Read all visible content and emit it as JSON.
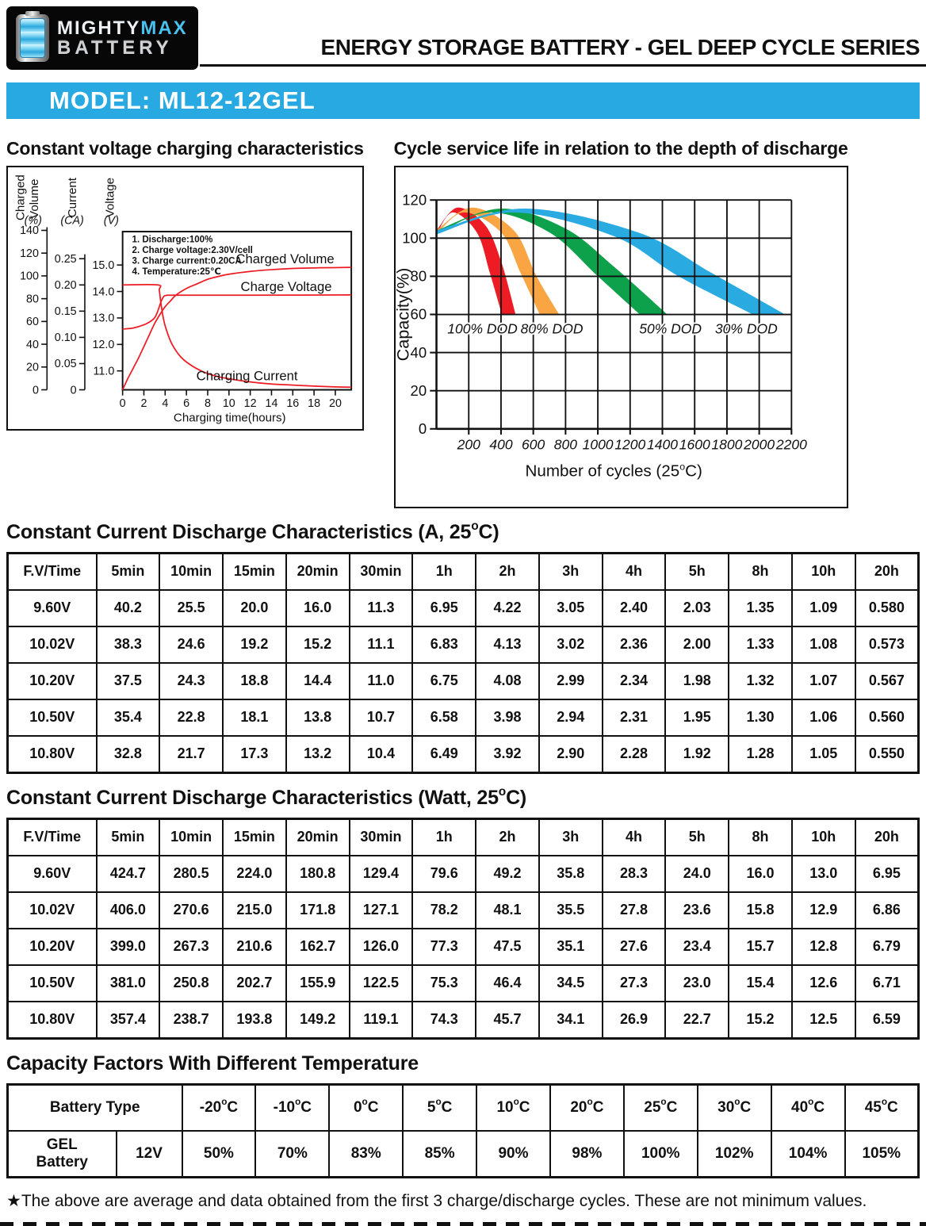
{
  "header": {
    "logo": {
      "brand_part1": "MIGHTY",
      "brand_part2": "MAX",
      "brand_part3": "BATTERY"
    },
    "series_title": "ENERGY STORAGE BATTERY - GEL DEEP CYCLE SERIES",
    "model_label": "MODEL: ML12-12GEL"
  },
  "chart_data": [
    {
      "id": "charging",
      "type": "line",
      "title": "Constant voltage charging characteristics",
      "xlabel": "Charging time(hours)",
      "x_ticks": [
        0,
        2,
        4,
        6,
        8,
        10,
        12,
        14,
        16,
        18,
        20
      ],
      "x_range": [
        0,
        21.5
      ],
      "grid": false,
      "axes": [
        {
          "name": "charged-volume",
          "label_lines": [
            "Charged",
            "Volume"
          ],
          "unit": "(%)",
          "ticks": [
            "0",
            "20",
            "40",
            "60",
            "80",
            "100",
            "120",
            "140"
          ],
          "range": [
            0,
            140
          ]
        },
        {
          "name": "current",
          "label_lines": [
            "Current"
          ],
          "unit": "(CA)",
          "ticks": [
            "0",
            "0.05",
            "0.10",
            "0.15",
            "0.20",
            "0.25"
          ],
          "range": [
            0,
            0.25
          ]
        },
        {
          "name": "voltage",
          "label_lines": [
            "Voltage"
          ],
          "unit": "(V)",
          "ticks": [
            "11.0",
            "12.0",
            "13.0",
            "14.0",
            "15.0"
          ],
          "range": [
            11,
            15
          ]
        }
      ],
      "notes": [
        "1. Discharge:100%",
        "2. Charge voltage:2.30V/cell",
        "3. Charge current:0.20CA",
        "4. Temperature:25℃"
      ],
      "line_color": "#ed1c24",
      "series": [
        {
          "name": "Charged Volume",
          "axis": "charged-volume",
          "color": "#ed1c24",
          "points": [
            [
              0,
              0
            ],
            [
              0.5,
              10
            ],
            [
              1,
              19
            ],
            [
              1.5,
              28
            ],
            [
              2,
              38
            ],
            [
              2.5,
              48
            ],
            [
              3,
              58
            ],
            [
              3.5,
              66
            ],
            [
              4,
              73
            ],
            [
              4.5,
              78
            ],
            [
              5,
              83
            ],
            [
              6,
              89
            ],
            [
              7,
              93
            ],
            [
              8,
              97
            ],
            [
              9,
              99.5
            ],
            [
              10,
              101.5
            ],
            [
              12,
              104
            ],
            [
              14,
              105.5
            ],
            [
              16,
              106.5
            ],
            [
              18,
              107
            ],
            [
              20,
              107.3
            ],
            [
              21.5,
              107.5
            ]
          ]
        },
        {
          "name": "Charge Voltage",
          "axis": "voltage",
          "color": "#ed1c24",
          "points": [
            [
              0,
              12.58
            ],
            [
              1,
              12.62
            ],
            [
              2,
              12.74
            ],
            [
              2.5,
              12.84
            ],
            [
              3,
              13.0
            ],
            [
              3.3,
              13.25
            ],
            [
              3.6,
              13.6
            ],
            [
              3.85,
              13.8
            ],
            [
              4.1,
              13.85
            ],
            [
              5,
              13.86
            ],
            [
              12,
              13.86
            ],
            [
              21.5,
              13.87
            ]
          ]
        },
        {
          "name": "Charging Current",
          "axis": "current",
          "color": "#ed1c24",
          "points": [
            [
              0,
              0.2
            ],
            [
              3.3,
              0.2
            ],
            [
              3.45,
              0.19
            ],
            [
              3.6,
              0.165
            ],
            [
              3.8,
              0.14
            ],
            [
              4,
              0.122
            ],
            [
              4.5,
              0.093
            ],
            [
              5,
              0.075
            ],
            [
              5.5,
              0.062
            ],
            [
              6,
              0.053
            ],
            [
              7,
              0.04
            ],
            [
              8,
              0.031
            ],
            [
              9,
              0.025
            ],
            [
              10,
              0.021
            ],
            [
              12,
              0.015
            ],
            [
              14,
              0.011
            ],
            [
              16,
              0.009
            ],
            [
              18,
              0.007
            ],
            [
              20,
              0.0055
            ],
            [
              21.5,
              0.005
            ]
          ]
        }
      ]
    },
    {
      "id": "cycle-life",
      "type": "area",
      "title": "Cycle service life in relation to the depth of discharge",
      "xlabel": "Number of cycles (25°C)",
      "ylabel": "Capacity(%)",
      "x_ticks": [
        200,
        400,
        600,
        800,
        1000,
        1200,
        1400,
        1600,
        1800,
        2000,
        2200
      ],
      "y_ticks": [
        0,
        20,
        40,
        60,
        80,
        100,
        120
      ],
      "x_range": [
        0,
        2200
      ],
      "y_range": [
        0,
        120
      ],
      "grid": true,
      "bands": [
        {
          "name": "100% DOD",
          "color": "#ed1c24",
          "label_x": 285,
          "label_y": 50,
          "upper": [
            [
              0,
              104
            ],
            [
              130,
              116
            ],
            [
              300,
              107
            ],
            [
              400,
              88
            ],
            [
              490,
              60
            ]
          ],
          "lower": [
            [
              0,
              102
            ],
            [
              100,
              113.5
            ],
            [
              250,
              103
            ],
            [
              330,
              82
            ],
            [
              405,
              60
            ]
          ]
        },
        {
          "name": "80% DOD",
          "color": "#f9a543",
          "label_x": 715,
          "label_y": 50,
          "upper": [
            [
              0,
              104
            ],
            [
              220,
              116
            ],
            [
              480,
              104
            ],
            [
              620,
              80
            ],
            [
              760,
              60
            ]
          ],
          "lower": [
            [
              0,
              102
            ],
            [
              170,
              113.5
            ],
            [
              400,
              103
            ],
            [
              520,
              82
            ],
            [
              640,
              60
            ]
          ]
        },
        {
          "name": "50% DOD",
          "color": "#0da14b",
          "label_x": 1450,
          "label_y": 50,
          "upper": [
            [
              0,
              104
            ],
            [
              400,
              115.5
            ],
            [
              800,
              105
            ],
            [
              1100,
              85
            ],
            [
              1430,
              60
            ]
          ],
          "lower": [
            [
              0,
              102
            ],
            [
              330,
              113.5
            ],
            [
              700,
              103
            ],
            [
              1000,
              80
            ],
            [
              1260,
              60
            ]
          ]
        },
        {
          "name": "30% DOD",
          "color": "#29abe2",
          "label_x": 1920,
          "label_y": 50,
          "upper": [
            [
              0,
              104
            ],
            [
              550,
              115.5
            ],
            [
              1250,
              103
            ],
            [
              1700,
              82
            ],
            [
              2160,
              60
            ]
          ],
          "lower": [
            [
              0,
              102
            ],
            [
              480,
              113.5
            ],
            [
              1100,
              101
            ],
            [
              1500,
              80
            ],
            [
              1960,
              60
            ]
          ]
        }
      ]
    }
  ],
  "tables": {
    "amps": {
      "title": "Constant Current Discharge Characteristics (A, 25°C)",
      "corner": "F.V/Time",
      "time_headers": [
        "5min",
        "10min",
        "15min",
        "20min",
        "30min",
        "1h",
        "2h",
        "3h",
        "4h",
        "5h",
        "8h",
        "10h",
        "20h"
      ],
      "rows": [
        {
          "fv": "9.60V",
          "values": [
            "40.2",
            "25.5",
            "20.0",
            "16.0",
            "11.3",
            "6.95",
            "4.22",
            "3.05",
            "2.40",
            "2.03",
            "1.35",
            "1.09",
            "0.580"
          ]
        },
        {
          "fv": "10.02V",
          "values": [
            "38.3",
            "24.6",
            "19.2",
            "15.2",
            "11.1",
            "6.83",
            "4.13",
            "3.02",
            "2.36",
            "2.00",
            "1.33",
            "1.08",
            "0.573"
          ]
        },
        {
          "fv": "10.20V",
          "values": [
            "37.5",
            "24.3",
            "18.8",
            "14.4",
            "11.0",
            "6.75",
            "4.08",
            "2.99",
            "2.34",
            "1.98",
            "1.32",
            "1.07",
            "0.567"
          ]
        },
        {
          "fv": "10.50V",
          "values": [
            "35.4",
            "22.8",
            "18.1",
            "13.8",
            "10.7",
            "6.58",
            "3.98",
            "2.94",
            "2.31",
            "1.95",
            "1.30",
            "1.06",
            "0.560"
          ]
        },
        {
          "fv": "10.80V",
          "values": [
            "32.8",
            "21.7",
            "17.3",
            "13.2",
            "10.4",
            "6.49",
            "3.92",
            "2.90",
            "2.28",
            "1.92",
            "1.28",
            "1.05",
            "0.550"
          ]
        }
      ]
    },
    "watts": {
      "title": "Constant Current Discharge Characteristics (Watt, 25°C)",
      "corner": "F.V/Time",
      "time_headers": [
        "5min",
        "10min",
        "15min",
        "20min",
        "30min",
        "1h",
        "2h",
        "3h",
        "4h",
        "5h",
        "8h",
        "10h",
        "20h"
      ],
      "rows": [
        {
          "fv": "9.60V",
          "values": [
            "424.7",
            "280.5",
            "224.0",
            "180.8",
            "129.4",
            "79.6",
            "49.2",
            "35.8",
            "28.3",
            "24.0",
            "16.0",
            "13.0",
            "6.95"
          ]
        },
        {
          "fv": "10.02V",
          "values": [
            "406.0",
            "270.6",
            "215.0",
            "171.8",
            "127.1",
            "78.2",
            "48.1",
            "35.5",
            "27.8",
            "23.6",
            "15.8",
            "12.9",
            "6.86"
          ]
        },
        {
          "fv": "10.20V",
          "values": [
            "399.0",
            "267.3",
            "210.6",
            "162.7",
            "126.0",
            "77.3",
            "47.5",
            "35.1",
            "27.6",
            "23.4",
            "15.7",
            "12.8",
            "6.79"
          ]
        },
        {
          "fv": "10.50V",
          "values": [
            "381.0",
            "250.8",
            "202.7",
            "155.9",
            "122.5",
            "75.3",
            "46.4",
            "34.5",
            "27.3",
            "23.0",
            "15.4",
            "12.6",
            "6.71"
          ]
        },
        {
          "fv": "10.80V",
          "values": [
            "357.4",
            "238.7",
            "193.8",
            "149.2",
            "119.1",
            "74.3",
            "45.7",
            "34.1",
            "26.9",
            "22.7",
            "15.2",
            "12.5",
            "6.59"
          ]
        }
      ]
    },
    "capacity": {
      "title": "Capacity Factors With Different Temperature",
      "battery_type_label": "Battery Type",
      "temps": [
        "-20°C",
        "-10°C",
        "0°C",
        "5°C",
        "10°C",
        "20°C",
        "25°C",
        "30°C",
        "40°C",
        "45°C"
      ],
      "row": {
        "type": "GEL\nBattery",
        "voltage": "12V",
        "values": [
          "50%",
          "70%",
          "83%",
          "85%",
          "90%",
          "98%",
          "100%",
          "102%",
          "104%",
          "105%"
        ]
      }
    }
  },
  "footnote": "★The above are average and data obtained from the first 3 charge/discharge cycles. These are not minimum values."
}
